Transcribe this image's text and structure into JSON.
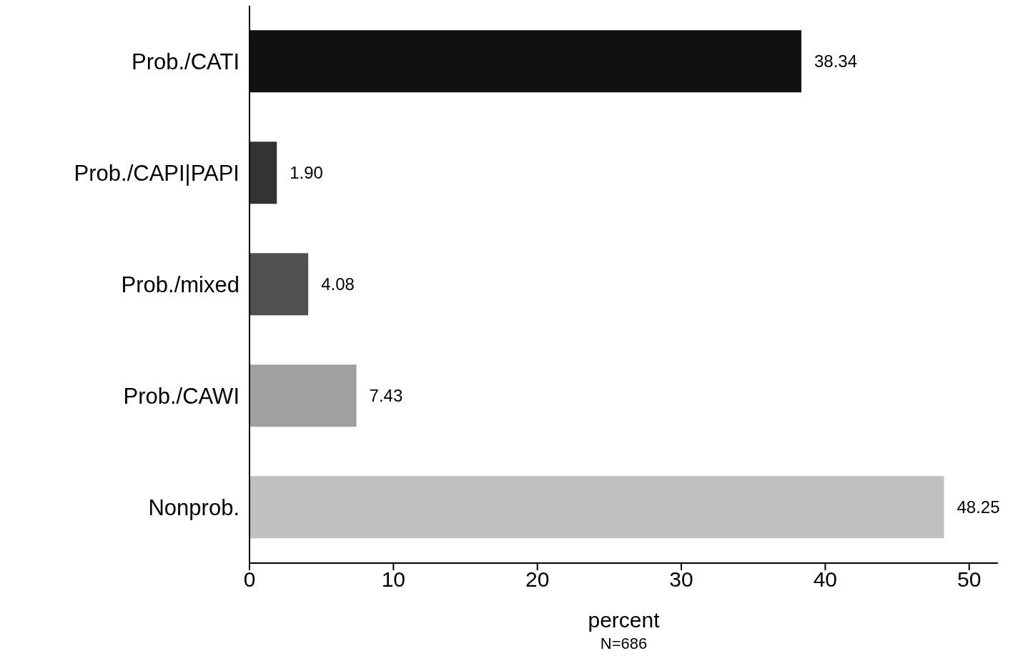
{
  "chart_data": {
    "type": "bar",
    "orientation": "horizontal",
    "categories": [
      "Prob./CATI",
      "Prob./CAPI|PAPI",
      "Prob./mixed",
      "Prob./CAWI",
      "Nonprob."
    ],
    "values": [
      38.34,
      1.9,
      4.08,
      7.43,
      48.25
    ],
    "value_labels": [
      "38.34",
      "1.90",
      "4.08",
      "7.43",
      "48.25"
    ],
    "colors": [
      "#111111",
      "#333333",
      "#505050",
      "#a0a0a0",
      "#c0c0c0"
    ],
    "xlim": [
      0,
      52
    ],
    "xticks": [
      0,
      10,
      20,
      30,
      40,
      50
    ],
    "xlabel": "percent",
    "annotations": [
      "N=686"
    ],
    "grid": false,
    "legend": false
  }
}
